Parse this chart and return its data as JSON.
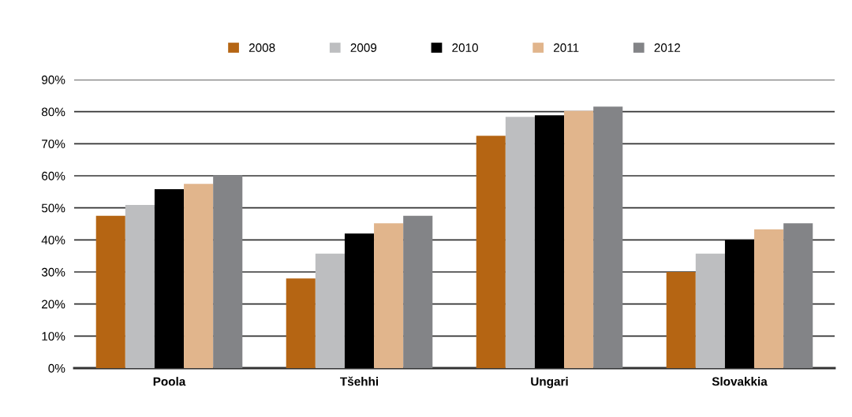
{
  "chart_data": {
    "type": "bar",
    "categories": [
      "Poola",
      "Tšehhi",
      "Ungari",
      "Slovakkia"
    ],
    "series": [
      {
        "name": "2008",
        "color": "#b56513",
        "values": [
          47.5,
          28,
          72.5,
          30
        ]
      },
      {
        "name": "2009",
        "color": "#bdbec0",
        "values": [
          50.9,
          35.7,
          78.4,
          35.7
        ]
      },
      {
        "name": "2010",
        "color": "#000000",
        "values": [
          55.8,
          42,
          78.9,
          40
        ]
      },
      {
        "name": "2011",
        "color": "#e1b58c",
        "values": [
          57.5,
          45.2,
          80.2,
          43.3
        ]
      },
      {
        "name": "2012",
        "color": "#838487",
        "values": [
          60.2,
          47.5,
          81.6,
          45.2
        ]
      }
    ],
    "ylim": [
      0,
      90
    ],
    "yticks": [
      {
        "value": 0,
        "label": "0%"
      },
      {
        "value": 10,
        "label": "10%"
      },
      {
        "value": 20,
        "label": "20%"
      },
      {
        "value": 30,
        "label": "30%"
      },
      {
        "value": 40,
        "label": "40%"
      },
      {
        "value": 50,
        "label": "50%"
      },
      {
        "value": 60,
        "label": "60%"
      },
      {
        "value": 70,
        "label": "70%"
      },
      {
        "value": 80,
        "label": "80%"
      },
      {
        "value": 90,
        "label": "90%"
      }
    ],
    "grid": "y",
    "legend": "top"
  }
}
